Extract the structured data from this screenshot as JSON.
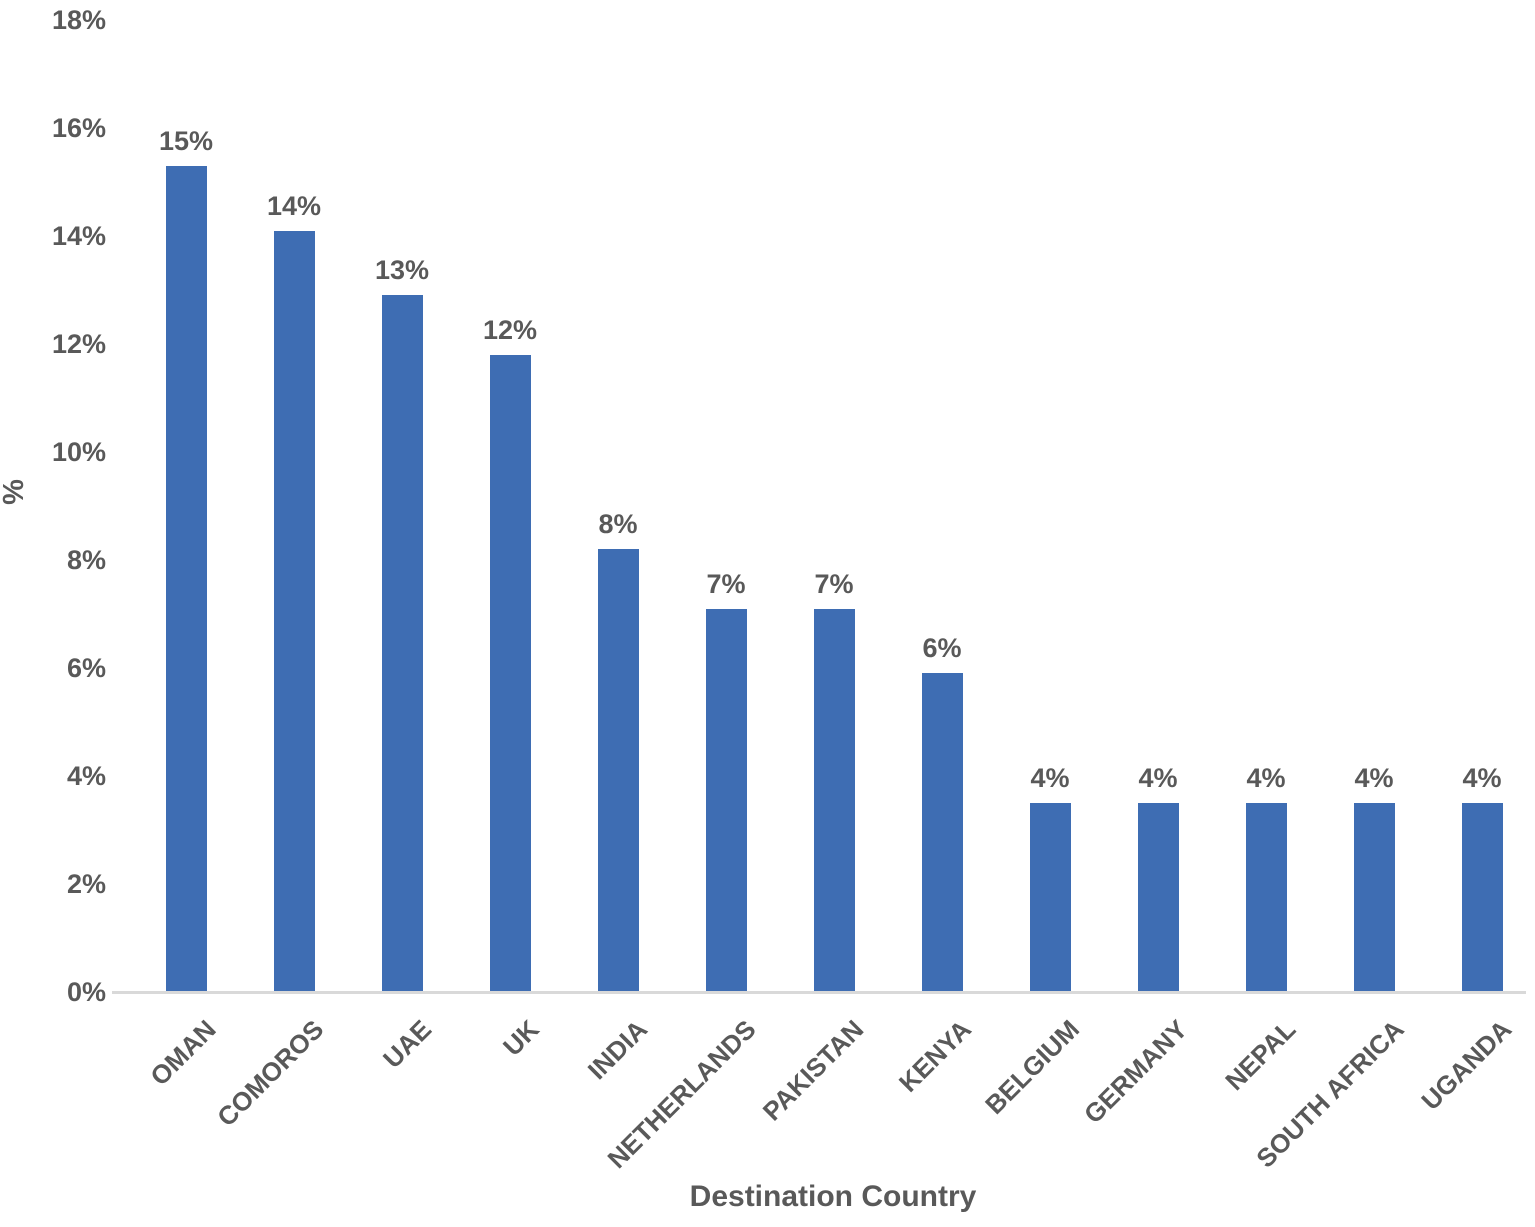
{
  "chart_data": {
    "type": "bar",
    "title": "",
    "xlabel": "Destination Country",
    "ylabel": "%",
    "categories": [
      "OMAN",
      "COMOROS",
      "UAE",
      "UK",
      "INDIA",
      "NETHERLANDS",
      "PAKISTAN",
      "KENYA",
      "BELGIUM",
      "GERMANY",
      "NEPAL",
      "SOUTH AFRICA",
      "UGANDA"
    ],
    "values": [
      15.3,
      14.1,
      12.9,
      11.8,
      8.2,
      7.1,
      7.1,
      5.9,
      3.5,
      3.5,
      3.5,
      3.5,
      3.5
    ],
    "data_labels": [
      "15%",
      "14%",
      "13%",
      "12%",
      "8%",
      "7%",
      "7%",
      "6%",
      "4%",
      "4%",
      "4%",
      "4%",
      "4%"
    ],
    "ylim": [
      0,
      18
    ],
    "ytick_values": [
      0,
      2,
      4,
      6,
      8,
      10,
      12,
      14,
      16,
      18
    ],
    "ytick_labels": [
      "0%",
      "2%",
      "4%",
      "6%",
      "8%",
      "10%",
      "12%",
      "14%",
      "16%",
      "18%"
    ],
    "grid": "off",
    "legend": "none",
    "bar_color": "#3E6DB3",
    "text_color": "#595959",
    "axis_line_color": "#D9D9D9"
  }
}
